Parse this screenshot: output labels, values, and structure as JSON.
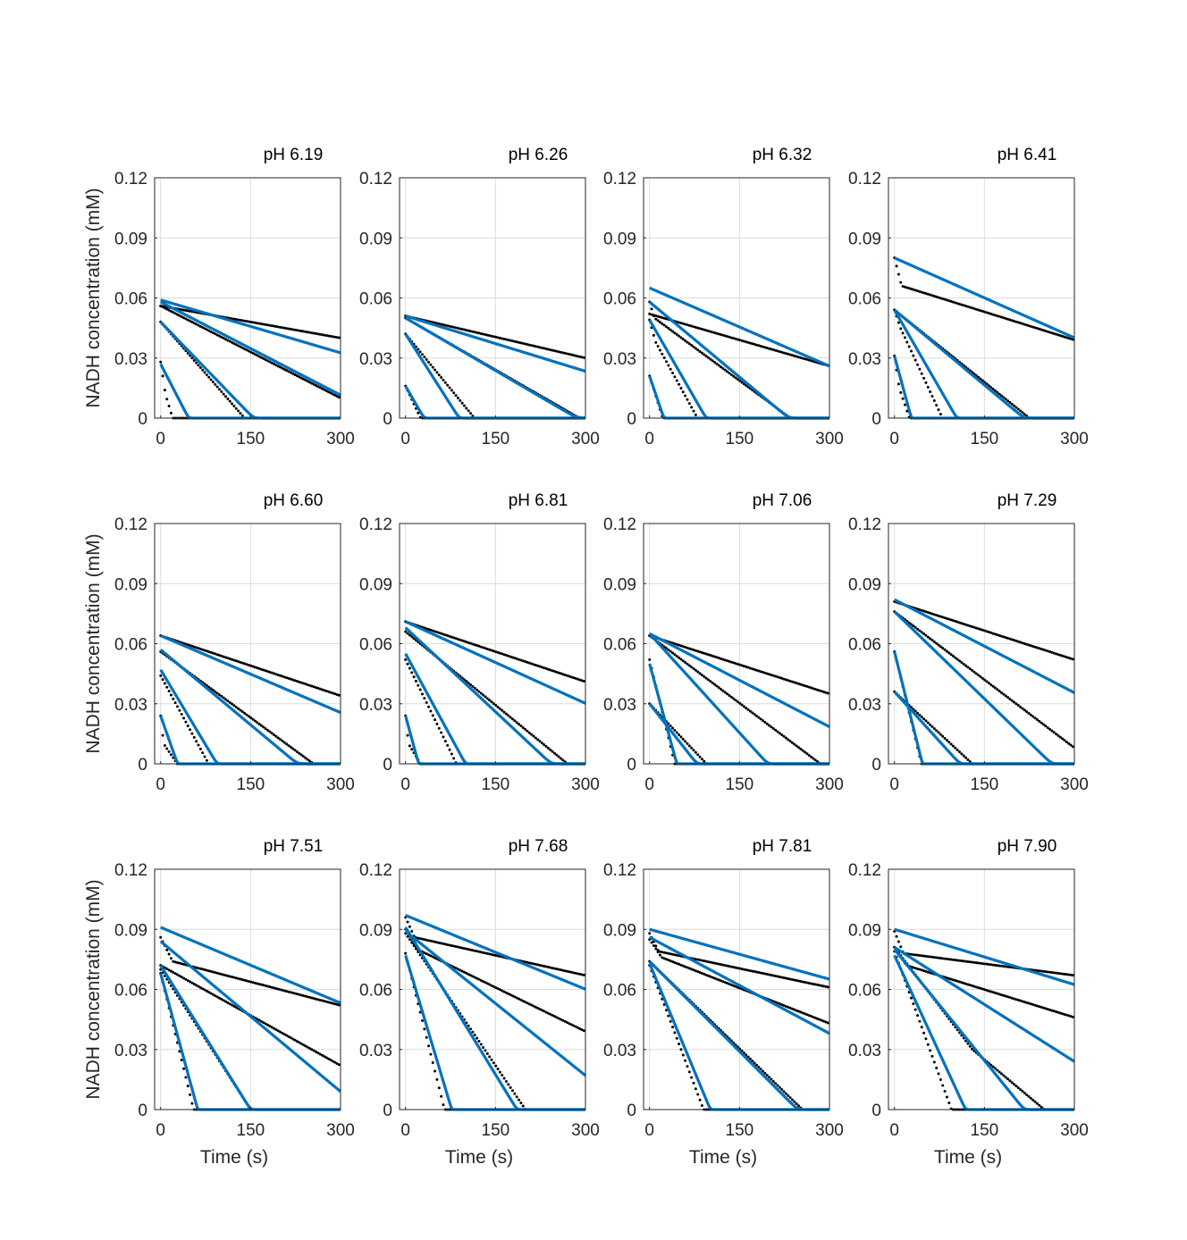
{
  "figure": {
    "ylabel": "NADH concentration (mM)",
    "xlabel": "Time (s)",
    "colors": {
      "model": "#0072BD",
      "data": "#000000",
      "grid": "#dcdcdc",
      "axes": "#262626"
    }
  },
  "chart_data": [
    {
      "type": "line",
      "title": "pH 6.19",
      "xlabel": "",
      "ylabel": "NADH concentration (mM)",
      "xlim": [
        -10,
        300
      ],
      "ylim": [
        0,
        0.12
      ],
      "xticks": [
        0,
        150,
        300
      ],
      "yticks": [
        0,
        0.03,
        0.06,
        0.09,
        0.12
      ],
      "grid": true,
      "model": [
        {
          "y0": 0.027,
          "rate": 0.00058
        },
        {
          "y0": 0.048,
          "rate": 0.00031
        },
        {
          "y0": 0.058,
          "rate": 0.000155
        },
        {
          "y0": 0.059,
          "rate": 8.8e-05
        }
      ],
      "measured": [
        {
          "y0": 0.028,
          "knee": [
            8,
            0.012
          ],
          "end": 20
        },
        {
          "y0": 0.048,
          "end": 140
        },
        {
          "y0": 0.056,
          "end_value": 0.01
        },
        {
          "y0": 0.056,
          "end_value": 0.04
        }
      ]
    },
    {
      "type": "line",
      "title": "pH 6.26",
      "xlabel": "",
      "ylabel": "",
      "xlim": [
        -10,
        300
      ],
      "ylim": [
        0,
        0.12
      ],
      "xticks": [
        0,
        150,
        300
      ],
      "yticks": [
        0,
        0.03,
        0.06,
        0.09,
        0.12
      ],
      "grid": true,
      "model": [
        {
          "y0": 0.016,
          "rate": 0.00052
        },
        {
          "y0": 0.042,
          "rate": 0.00047
        },
        {
          "y0": 0.05,
          "rate": 0.000175
        },
        {
          "y0": 0.051,
          "rate": 9.2e-05
        }
      ],
      "measured": [
        {
          "y0": 0.016,
          "end": 25
        },
        {
          "y0": 0.042,
          "end": 115
        },
        {
          "y0": 0.05,
          "end": 290
        },
        {
          "y0": 0.051,
          "end_value": 0.03
        }
      ]
    },
    {
      "type": "line",
      "title": "pH 6.32",
      "xlabel": "",
      "ylabel": "",
      "xlim": [
        -10,
        300
      ],
      "ylim": [
        0,
        0.12
      ],
      "xticks": [
        0,
        150,
        300
      ],
      "yticks": [
        0,
        0.03,
        0.06,
        0.09,
        0.12
      ],
      "grid": true,
      "model": [
        {
          "y0": 0.021,
          "rate": 0.00088
        },
        {
          "y0": 0.049,
          "rate": 0.00052
        },
        {
          "y0": 0.058,
          "rate": 0.00025
        },
        {
          "y0": 0.065,
          "rate": 0.00013
        }
      ],
      "measured": [
        {
          "y0": 0.021,
          "end": 22
        },
        {
          "y0": 0.049,
          "knee": [
            10,
            0.038
          ],
          "end": 80
        },
        {
          "y0": 0.058,
          "knee": [
            8,
            0.05
          ],
          "end": 235
        },
        {
          "y0": 0.052,
          "end_value": 0.026
        }
      ]
    },
    {
      "type": "line",
      "title": "pH 6.41",
      "xlabel": "",
      "ylabel": "",
      "xlim": [
        -10,
        300
      ],
      "ylim": [
        0,
        0.12
      ],
      "xticks": [
        0,
        150,
        300
      ],
      "yticks": [
        0,
        0.03,
        0.06,
        0.09,
        0.12
      ],
      "grid": true,
      "model": [
        {
          "y0": 0.031,
          "rate": 0.0011
        },
        {
          "y0": 0.054,
          "rate": 0.00052
        },
        {
          "y0": 0.054,
          "rate": 0.00025
        },
        {
          "y0": 0.08,
          "rate": 0.000133
        }
      ],
      "measured": [
        {
          "y0": 0.031,
          "knee": [
            8,
            0.015
          ],
          "end": 25
        },
        {
          "y0": 0.054,
          "knee": [
            10,
            0.045
          ],
          "end": 80
        },
        {
          "y0": 0.054,
          "end": 225
        },
        {
          "y0": 0.08,
          "knee": [
            12,
            0.066
          ],
          "end_value": 0.039
        }
      ]
    },
    {
      "type": "line",
      "title": "pH 6.60",
      "xlabel": "",
      "ylabel": "NADH concentration (mM)",
      "xlim": [
        -10,
        300
      ],
      "ylim": [
        0,
        0.12
      ],
      "xticks": [
        0,
        150,
        300
      ],
      "yticks": [
        0,
        0.03,
        0.06,
        0.09,
        0.12
      ],
      "grid": true,
      "model": [
        {
          "y0": 0.024,
          "rate": 0.00085
        },
        {
          "y0": 0.047,
          "rate": 0.0005
        },
        {
          "y0": 0.057,
          "rate": 0.00025
        },
        {
          "y0": 0.064,
          "rate": 0.000128
        }
      ],
      "measured": [
        {
          "y0": 0.024,
          "knee": [
            5,
            0.01
          ],
          "end": 28
        },
        {
          "y0": 0.044,
          "end": 80
        },
        {
          "y0": 0.056,
          "end": 255
        },
        {
          "y0": 0.064,
          "end_value": 0.034
        }
      ]
    },
    {
      "type": "line",
      "title": "pH 6.81",
      "xlabel": "",
      "ylabel": "",
      "xlim": [
        -10,
        300
      ],
      "ylim": [
        0,
        0.12
      ],
      "xticks": [
        0,
        150,
        300
      ],
      "yticks": [
        0,
        0.03,
        0.06,
        0.09,
        0.12
      ],
      "grid": true,
      "model": [
        {
          "y0": 0.024,
          "rate": 0.0011
        },
        {
          "y0": 0.055,
          "rate": 0.00055
        },
        {
          "y0": 0.068,
          "rate": 0.00028
        },
        {
          "y0": 0.071,
          "rate": 0.000136
        }
      ],
      "measured": [
        {
          "y0": 0.024,
          "knee": [
            5,
            0.01
          ],
          "end": 25
        },
        {
          "y0": 0.052,
          "end": 85
        },
        {
          "y0": 0.066,
          "end": 270
        },
        {
          "y0": 0.071,
          "end_value": 0.041
        }
      ]
    },
    {
      "type": "line",
      "title": "pH 7.06",
      "xlabel": "",
      "ylabel": "",
      "xlim": [
        -10,
        300
      ],
      "ylim": [
        0,
        0.12
      ],
      "xticks": [
        0,
        150,
        300
      ],
      "yticks": [
        0,
        0.03,
        0.06,
        0.09,
        0.12
      ],
      "grid": true,
      "model": [
        {
          "y0": 0.05,
          "rate": 0.0011
        },
        {
          "y0": 0.03,
          "rate": 0.00038
        },
        {
          "y0": 0.065,
          "rate": 0.00033
        },
        {
          "y0": 0.065,
          "rate": 0.000155
        }
      ],
      "measured": [
        {
          "y0": 0.052,
          "end": 42
        },
        {
          "y0": 0.03,
          "end": 95
        },
        {
          "y0": 0.064,
          "end": 285
        },
        {
          "y0": 0.064,
          "end_value": 0.035
        }
      ]
    },
    {
      "type": "line",
      "title": "pH 7.29",
      "xlabel": "",
      "ylabel": "",
      "xlim": [
        -10,
        300
      ],
      "ylim": [
        0,
        0.12
      ],
      "xticks": [
        0,
        150,
        300
      ],
      "yticks": [
        0,
        0.03,
        0.06,
        0.09,
        0.12
      ],
      "grid": true,
      "model": [
        {
          "y0": 0.056,
          "rate": 0.0012
        },
        {
          "y0": 0.036,
          "rate": 0.00033
        },
        {
          "y0": 0.076,
          "rate": 0.00029
        },
        {
          "y0": 0.082,
          "rate": 0.000155
        }
      ],
      "measured": [
        {
          "y0": 0.056,
          "end": 45
        },
        {
          "y0": 0.036,
          "end": 130
        },
        {
          "y0": 0.076,
          "end_value": 0.008
        },
        {
          "y0": 0.081,
          "end_value": 0.052
        }
      ]
    },
    {
      "type": "line",
      "title": "pH 7.51",
      "xlabel": "Time (s)",
      "ylabel": "NADH concentration (mM)",
      "xlim": [
        -10,
        300
      ],
      "ylim": [
        0,
        0.12
      ],
      "xticks": [
        0,
        150,
        300
      ],
      "yticks": [
        0,
        0.03,
        0.06,
        0.09,
        0.12
      ],
      "grid": true,
      "model": [
        {
          "y0": 0.068,
          "rate": 0.0011
        },
        {
          "y0": 0.072,
          "rate": 0.00048
        },
        {
          "y0": 0.084,
          "rate": 0.00025
        },
        {
          "y0": 0.091,
          "rate": 0.000126
        }
      ],
      "measured": [
        {
          "y0": 0.068,
          "end": 55
        },
        {
          "y0": 0.07,
          "end": 150
        },
        {
          "y0": 0.072,
          "end_value": 0.022
        },
        {
          "y0": 0.086,
          "knee": [
            20,
            0.074
          ],
          "end_value": 0.052
        }
      ]
    },
    {
      "type": "line",
      "title": "pH 7.68",
      "xlabel": "Time (s)",
      "ylabel": "",
      "xlim": [
        -10,
        300
      ],
      "ylim": [
        0,
        0.12
      ],
      "xticks": [
        0,
        150,
        300
      ],
      "yticks": [
        0,
        0.03,
        0.06,
        0.09,
        0.12
      ],
      "grid": true,
      "model": [
        {
          "y0": 0.077,
          "rate": 0.001
        },
        {
          "y0": 0.091,
          "rate": 0.00049
        },
        {
          "y0": 0.089,
          "rate": 0.00024
        },
        {
          "y0": 0.097,
          "rate": 0.000123
        }
      ],
      "measured": [
        {
          "y0": 0.078,
          "end": 65
        },
        {
          "y0": 0.088,
          "end": 200
        },
        {
          "y0": 0.09,
          "knee": [
            20,
            0.08
          ],
          "end_value": 0.039
        },
        {
          "y0": 0.096,
          "knee": [
            15,
            0.086
          ],
          "end_value": 0.067
        }
      ]
    },
    {
      "type": "line",
      "title": "pH 7.81",
      "xlabel": "Time (s)",
      "ylabel": "",
      "xlim": [
        -10,
        300
      ],
      "ylim": [
        0,
        0.12
      ],
      "xticks": [
        0,
        150,
        300
      ],
      "yticks": [
        0,
        0.03,
        0.06,
        0.09,
        0.12
      ],
      "grid": true,
      "model": [
        {
          "y0": 0.073,
          "rate": 0.00072
        },
        {
          "y0": 0.074,
          "rate": 0.0003
        },
        {
          "y0": 0.086,
          "rate": 0.00016
        },
        {
          "y0": 0.09,
          "rate": 8.3e-05
        }
      ],
      "measured": [
        {
          "y0": 0.072,
          "end": 90
        },
        {
          "y0": 0.074,
          "end": 255
        },
        {
          "y0": 0.085,
          "knee": [
            20,
            0.076
          ],
          "end_value": 0.043
        },
        {
          "y0": 0.088,
          "knee": [
            15,
            0.079
          ],
          "end_value": 0.061
        }
      ]
    },
    {
      "type": "line",
      "title": "pH 7.90",
      "xlabel": "Time (s)",
      "ylabel": "",
      "xlim": [
        -10,
        300
      ],
      "ylim": [
        0,
        0.12
      ],
      "xticks": [
        0,
        150,
        300
      ],
      "yticks": [
        0,
        0.03,
        0.06,
        0.09,
        0.12
      ],
      "grid": true,
      "model": [
        {
          "y0": 0.077,
          "rate": 0.00065
        },
        {
          "y0": 0.08,
          "rate": 0.00037
        },
        {
          "y0": 0.081,
          "rate": 0.00019
        },
        {
          "y0": 0.09,
          "rate": 9.2e-05
        }
      ],
      "measured": [
        {
          "y0": 0.079,
          "end": 95
        },
        {
          "y0": 0.081,
          "knee": [
            130,
            0.03
          ],
          "end": 250
        },
        {
          "y0": 0.081,
          "knee": [
            20,
            0.072
          ],
          "end_value": 0.046
        },
        {
          "y0": 0.089,
          "knee": [
            15,
            0.078
          ],
          "end_value": 0.067
        }
      ]
    }
  ]
}
